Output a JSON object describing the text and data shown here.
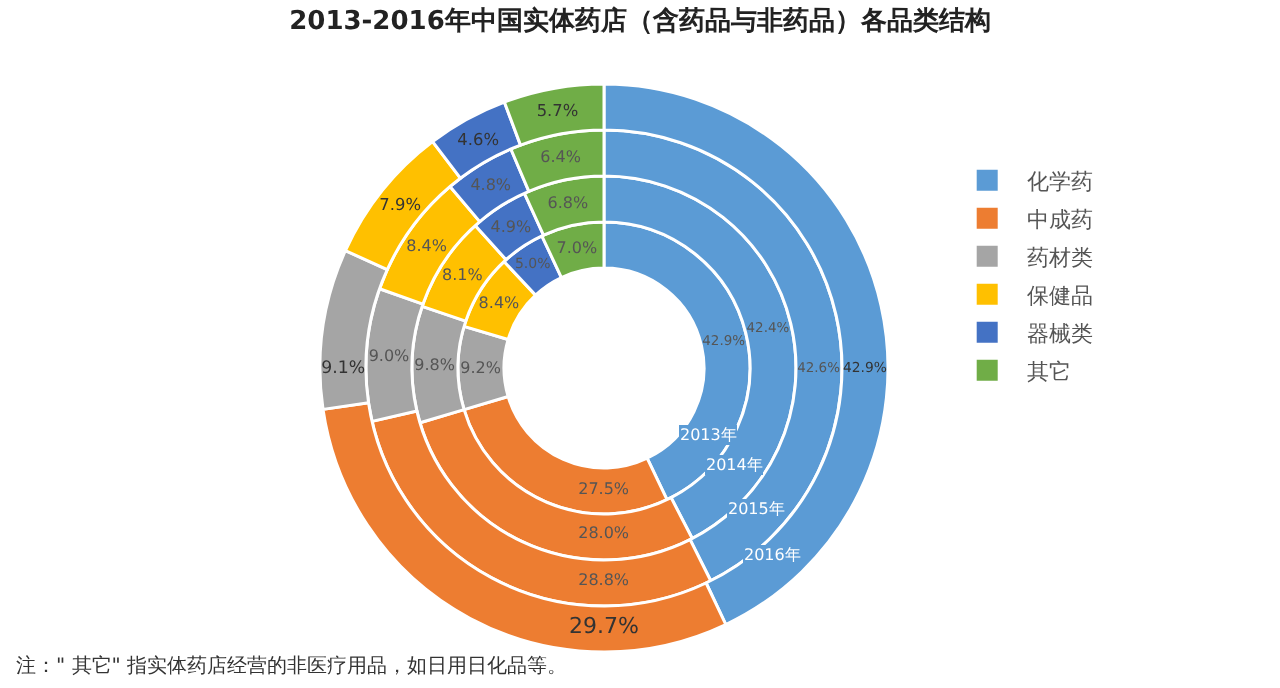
{
  "chart_data": {
    "type": "donut",
    "title": "2013-2016年中国实体药店（含药品与非药品）各品类结构",
    "categories": [
      "化学药",
      "中成药",
      "药材类",
      "保健品",
      "器械类",
      "其它"
    ],
    "colors": [
      "#5b9bd5",
      "#ed7d31",
      "#a5a5a5",
      "#ffc000",
      "#4472c4",
      "#70ad47"
    ],
    "series": [
      {
        "name": "2013年",
        "values": [
          42.9,
          27.5,
          9.2,
          8.4,
          5.0,
          7.0
        ],
        "value_labels": [
          "42.9%",
          "27.5%",
          "9.2%",
          "8.4%",
          "5.0%",
          "7.0%"
        ]
      },
      {
        "name": "2014年",
        "values": [
          42.4,
          28.0,
          9.8,
          8.1,
          4.9,
          6.8
        ],
        "value_labels": [
          "42.4%",
          "28.0%",
          "9.8%",
          "8.1%",
          "4.9%",
          "6.8%"
        ]
      },
      {
        "name": "2015年",
        "values": [
          42.6,
          28.8,
          9.0,
          8.4,
          4.8,
          6.4
        ],
        "value_labels": [
          "42.6%",
          "28.8%",
          "9.0%",
          "8.4%",
          "4.8%",
          "6.4%"
        ]
      },
      {
        "name": "2016年",
        "values": [
          42.9,
          29.7,
          9.1,
          7.9,
          4.6,
          5.7
        ],
        "value_labels": [
          "42.9%",
          "29.7%",
          "9.1%",
          "7.9%",
          "4.6%",
          "5.7%"
        ]
      }
    ],
    "legend": "right",
    "annotations": [
      "注：\" 其它\" 指实体药店经营的非医疗用品，如日用日化品等。"
    ]
  }
}
